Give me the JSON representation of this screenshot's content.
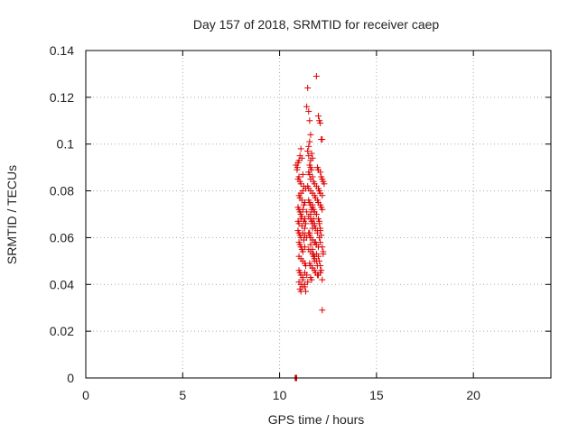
{
  "chart_data": {
    "type": "scatter",
    "title": "Day 157 of 2018, SRMTID for receiver caep",
    "xlabel": "GPS time / hours",
    "ylabel": "SRMTID / TECUs",
    "xlim": [
      0,
      24
    ],
    "ylim": [
      0,
      0.14
    ],
    "xticks": [
      0,
      5,
      10,
      15,
      20
    ],
    "xtick_labels": [
      "0",
      "5",
      "10",
      "15",
      "20"
    ],
    "yticks": [
      0,
      0.02,
      0.04,
      0.06,
      0.08,
      0.1,
      0.12,
      0.14
    ],
    "ytick_labels": [
      "0",
      "0.02",
      "0.04",
      "0.06",
      "0.08",
      "0.1",
      "0.12",
      "0.14"
    ],
    "grid": true,
    "marker": "+",
    "color": "#dd0000",
    "series": [
      {
        "name": "SRMTID",
        "x": [
          10.8,
          10.82,
          10.84,
          10.86,
          10.88,
          10.85,
          10.95,
          10.9,
          11.0,
          10.92,
          11.05,
          11.1,
          11.15,
          10.95,
          11.05,
          11.0,
          11.1,
          11.2,
          11.25,
          11.0,
          11.05,
          11.1,
          11.15,
          11.2,
          11.3,
          11.35,
          11.25,
          10.95,
          11.0,
          11.05,
          11.1,
          11.15,
          11.2,
          11.3,
          11.4,
          10.95,
          11.0,
          11.1,
          11.15,
          11.25,
          11.3,
          11.35,
          10.95,
          11.0,
          11.05,
          11.1,
          11.2,
          11.25,
          11.3,
          11.4,
          11.0,
          11.05,
          11.1,
          11.15,
          11.2,
          11.3,
          11.0,
          11.1,
          11.2,
          11.3,
          11.35,
          11.0,
          11.05,
          11.1,
          11.2,
          11.3,
          11.4,
          11.0,
          11.1,
          11.2,
          11.3,
          11.45,
          11.05,
          11.1,
          11.2,
          11.3,
          11.35,
          11.4,
          11.5,
          11.55,
          11.45,
          11.5,
          11.6,
          11.55,
          11.45,
          11.5,
          11.6,
          11.65,
          11.7,
          11.55,
          11.6,
          11.65,
          11.5,
          11.55,
          11.6,
          11.7,
          11.75,
          11.8,
          11.45,
          11.5,
          11.6,
          11.7,
          11.8,
          11.85,
          11.5,
          11.55,
          11.6,
          11.7,
          11.75,
          11.8,
          11.9,
          11.5,
          11.6,
          11.65,
          11.7,
          11.8,
          11.85,
          11.95,
          11.5,
          11.55,
          11.6,
          11.7,
          11.8,
          11.9,
          12.0,
          11.5,
          11.6,
          11.7,
          11.75,
          11.8,
          11.9,
          11.55,
          11.6,
          11.7,
          11.8,
          11.85,
          11.95,
          11.6,
          11.65,
          11.7,
          11.8,
          11.9,
          11.95,
          12.0,
          11.6,
          11.7,
          11.75,
          11.8,
          11.85,
          11.55,
          11.7,
          11.8,
          11.75,
          11.6,
          11.65,
          11.7,
          11.9,
          12.0,
          12.05,
          12.1,
          12.15,
          12.2,
          11.95,
          12.0,
          12.1,
          12.15,
          12.2,
          12.25,
          11.9,
          12.0,
          12.05,
          12.1,
          12.2,
          11.95,
          12.0,
          12.1,
          12.15,
          12.2,
          11.9,
          12.0,
          12.05,
          12.1,
          11.95,
          12.05,
          12.1,
          12.2,
          12.25,
          12.0,
          12.05,
          12.1,
          12.15,
          12.25,
          12.1,
          12.2,
          12.2,
          12.1,
          12.15,
          12.05,
          12.3
        ],
        "y": [
          0.0,
          0.0,
          0.0,
          0.0,
          0.0,
          0.091,
          0.092,
          0.089,
          0.093,
          0.09,
          0.095,
          0.098,
          0.094,
          0.085,
          0.084,
          0.086,
          0.083,
          0.087,
          0.082,
          0.078,
          0.077,
          0.079,
          0.076,
          0.08,
          0.075,
          0.081,
          0.074,
          0.073,
          0.072,
          0.071,
          0.07,
          0.069,
          0.072,
          0.068,
          0.071,
          0.067,
          0.066,
          0.068,
          0.065,
          0.067,
          0.064,
          0.066,
          0.063,
          0.062,
          0.061,
          0.06,
          0.062,
          0.059,
          0.061,
          0.06,
          0.058,
          0.057,
          0.056,
          0.055,
          0.054,
          0.056,
          0.052,
          0.051,
          0.05,
          0.049,
          0.048,
          0.046,
          0.045,
          0.044,
          0.043,
          0.045,
          0.044,
          0.041,
          0.04,
          0.042,
          0.039,
          0.041,
          0.038,
          0.037,
          0.039,
          0.04,
          0.037,
          0.116,
          0.114,
          0.11,
          0.124,
          0.099,
          0.104,
          0.101,
          0.097,
          0.095,
          0.093,
          0.096,
          0.094,
          0.091,
          0.09,
          0.089,
          0.088,
          0.087,
          0.085,
          0.086,
          0.084,
          0.083,
          0.082,
          0.081,
          0.08,
          0.079,
          0.078,
          0.077,
          0.076,
          0.075,
          0.074,
          0.073,
          0.072,
          0.071,
          0.07,
          0.069,
          0.068,
          0.067,
          0.066,
          0.065,
          0.064,
          0.063,
          0.062,
          0.061,
          0.06,
          0.059,
          0.058,
          0.057,
          0.056,
          0.055,
          0.054,
          0.053,
          0.052,
          0.051,
          0.05,
          0.049,
          0.048,
          0.047,
          0.046,
          0.045,
          0.044,
          0.043,
          0.042,
          0.047,
          0.05,
          0.053,
          0.048,
          0.044,
          0.057,
          0.055,
          0.053,
          0.052,
          0.058,
          0.062,
          0.064,
          0.066,
          0.068,
          0.07,
          0.072,
          0.074,
          0.129,
          0.112,
          0.11,
          0.109,
          0.102,
          0.102,
          0.09,
          0.089,
          0.088,
          0.086,
          0.085,
          0.084,
          0.082,
          0.081,
          0.08,
          0.079,
          0.078,
          0.076,
          0.075,
          0.074,
          0.073,
          0.072,
          0.07,
          0.068,
          0.066,
          0.064,
          0.062,
          0.06,
          0.058,
          0.056,
          0.054,
          0.052,
          0.05,
          0.048,
          0.046,
          0.053,
          0.045,
          0.042,
          0.029,
          0.063,
          0.061,
          0.067,
          0.083
        ]
      }
    ]
  }
}
